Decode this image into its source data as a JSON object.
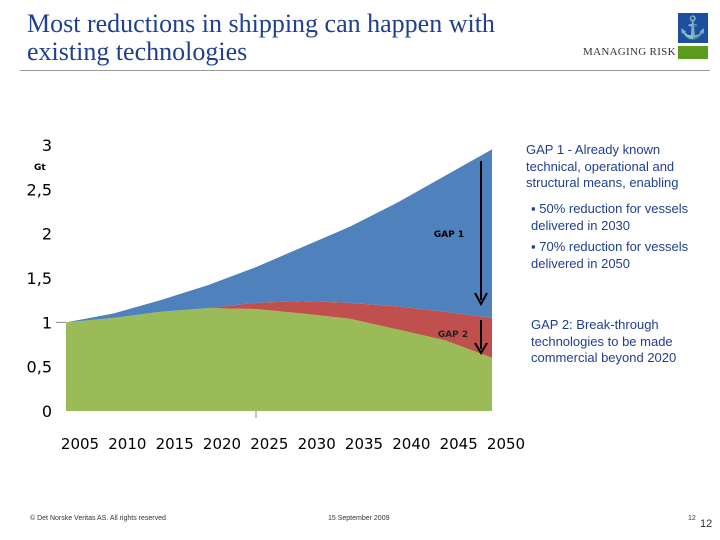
{
  "header": {
    "title": "Most reductions in shipping can happen with existing technologies",
    "tagline": "MANAGING RISK",
    "logo_text": "DNV"
  },
  "notes": {
    "gap1_title": "GAP 1 - Already known technical, operational and structural means, enabling",
    "bullets": [
      "50% reduction for vessels delivered in 2030",
      "70% reduction for vessels delivered in 2050"
    ],
    "gap2_text": "GAP 2: Break-through technologies to be made commercial beyond 2020"
  },
  "footer": {
    "copyright": "© Det Norske Veritas AS. All rights reserved",
    "date": "15 September 2009",
    "page_small": "12",
    "page": "12"
  },
  "colors": {
    "base": "#9bbb59",
    "gap2": "#c0504d",
    "gap1": "#4f81bd",
    "title": "#1f3f8f"
  },
  "chart_data": {
    "type": "area",
    "stacked": true,
    "ylabel": "Gt",
    "ylim": [
      0,
      3
    ],
    "yticks": [
      "0",
      "0,5",
      "1",
      "1,5",
      "2",
      "2,5",
      "3"
    ],
    "categories": [
      "2005",
      "2010",
      "2015",
      "2020",
      "2025",
      "2030",
      "2035",
      "2040",
      "2045",
      "2050"
    ],
    "series": [
      {
        "values": [
          1.0,
          1.05,
          1.12,
          1.16,
          1.15,
          1.1,
          1.04,
          0.92,
          0.8,
          0.6
        ]
      },
      {
        "name": "GAP 2",
        "values": [
          0,
          0,
          0,
          0,
          0.07,
          0.14,
          0.18,
          0.26,
          0.32,
          0.45
        ]
      },
      {
        "name": "GAP 1",
        "values": [
          0,
          0.05,
          0.13,
          0.26,
          0.4,
          0.61,
          0.86,
          1.17,
          1.53,
          1.9
        ]
      }
    ],
    "annotations": [
      "GAP 1",
      "GAP 2"
    ],
    "grid": false
  }
}
